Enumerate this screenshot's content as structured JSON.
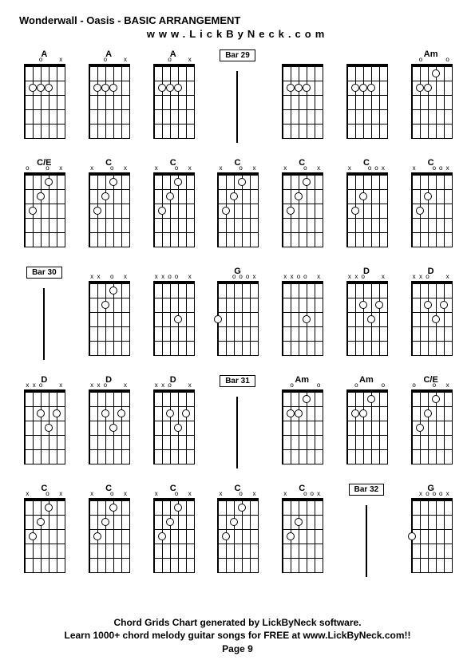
{
  "header": {
    "title": "Wonderwall - Oasis - BASIC ARRANGEMENT",
    "subtitle": "www.LickByNeck.com"
  },
  "grid": {
    "columns": 7,
    "rows": 5,
    "cells": [
      {
        "type": "chord",
        "label": "A",
        "markers": [
          "",
          "",
          "o",
          "",
          "",
          "x"
        ],
        "dots": [
          [
            2,
            2
          ],
          [
            3,
            2
          ],
          [
            4,
            2
          ]
        ]
      },
      {
        "type": "chord",
        "label": "A",
        "markers": [
          "",
          "",
          "o",
          "",
          "",
          "x"
        ],
        "dots": [
          [
            2,
            2
          ],
          [
            3,
            2
          ],
          [
            4,
            2
          ]
        ]
      },
      {
        "type": "chord",
        "label": "A",
        "markers": [
          "",
          "",
          "o",
          "",
          "",
          "x"
        ],
        "dots": [
          [
            2,
            2
          ],
          [
            3,
            2
          ],
          [
            4,
            2
          ]
        ]
      },
      {
        "type": "bar",
        "label": "Bar 29"
      },
      {
        "type": "chord",
        "label": "",
        "markers": [
          "",
          "",
          "",
          "",
          "",
          ""
        ],
        "dots": [
          [
            2,
            2
          ],
          [
            3,
            2
          ],
          [
            4,
            2
          ]
        ]
      },
      {
        "type": "chord",
        "label": "",
        "markers": [
          "",
          "",
          "",
          "",
          "",
          ""
        ],
        "dots": [
          [
            2,
            2
          ],
          [
            3,
            2
          ],
          [
            4,
            2
          ]
        ]
      },
      {
        "type": "chord",
        "label": "Am",
        "markers": [
          "",
          "o",
          "",
          "",
          "",
          "o"
        ],
        "dots": [
          [
            2,
            2
          ],
          [
            3,
            2
          ],
          [
            4,
            1
          ]
        ]
      },
      {
        "type": "chord",
        "label": "C/E",
        "markers": [
          "o",
          "",
          "",
          "o",
          "",
          "x"
        ],
        "dots": [
          [
            2,
            3
          ],
          [
            3,
            2
          ],
          [
            4,
            1
          ]
        ]
      },
      {
        "type": "chord",
        "label": "C",
        "markers": [
          "x",
          "",
          "",
          "o",
          "",
          "x"
        ],
        "dots": [
          [
            2,
            3
          ],
          [
            3,
            2
          ],
          [
            4,
            1
          ]
        ]
      },
      {
        "type": "chord",
        "label": "C",
        "markers": [
          "x",
          "",
          "",
          "o",
          "",
          "x"
        ],
        "dots": [
          [
            2,
            3
          ],
          [
            3,
            2
          ],
          [
            4,
            1
          ]
        ]
      },
      {
        "type": "chord",
        "label": "C",
        "markers": [
          "x",
          "",
          "",
          "o",
          "",
          "x"
        ],
        "dots": [
          [
            2,
            3
          ],
          [
            3,
            2
          ],
          [
            4,
            1
          ]
        ]
      },
      {
        "type": "chord",
        "label": "C",
        "markers": [
          "x",
          "",
          "",
          "o",
          "",
          "x"
        ],
        "dots": [
          [
            2,
            3
          ],
          [
            3,
            2
          ],
          [
            4,
            1
          ]
        ]
      },
      {
        "type": "chord",
        "label": "C",
        "markers": [
          "x",
          "",
          "",
          "o",
          "o",
          "x"
        ],
        "dots": [
          [
            2,
            3
          ],
          [
            3,
            2
          ]
        ]
      },
      {
        "type": "chord",
        "label": "C",
        "markers": [
          "x",
          "",
          "",
          "o",
          "o",
          "x"
        ],
        "dots": [
          [
            2,
            3
          ],
          [
            3,
            2
          ]
        ]
      },
      {
        "type": "bar",
        "label": "Bar 30"
      },
      {
        "type": "chord",
        "label": "",
        "markers": [
          "x",
          "x",
          "",
          "o",
          "",
          "x"
        ],
        "dots": [
          [
            3,
            2
          ],
          [
            4,
            1
          ]
        ]
      },
      {
        "type": "chord",
        "label": "",
        "markers": [
          "x",
          "x",
          "o",
          "o",
          "",
          "x"
        ],
        "dots": [
          [
            4,
            3
          ]
        ]
      },
      {
        "type": "chord",
        "label": "G",
        "markers": [
          "",
          "",
          "o",
          "o",
          "o",
          "x"
        ],
        "dots": [
          [
            1,
            3
          ]
        ]
      },
      {
        "type": "chord",
        "label": "",
        "markers": [
          "x",
          "x",
          "o",
          "o",
          "",
          "x"
        ],
        "dots": [
          [
            4,
            3
          ]
        ]
      },
      {
        "type": "chord",
        "label": "D",
        "markers": [
          "x",
          "x",
          "o",
          "",
          "",
          "x"
        ],
        "dots": [
          [
            3,
            2
          ],
          [
            4,
            3
          ],
          [
            5,
            2
          ]
        ]
      },
      {
        "type": "chord",
        "label": "D",
        "markers": [
          "x",
          "x",
          "o",
          "",
          "",
          "x"
        ],
        "dots": [
          [
            3,
            2
          ],
          [
            4,
            3
          ],
          [
            5,
            2
          ]
        ]
      },
      {
        "type": "chord",
        "label": "D",
        "markers": [
          "x",
          "x",
          "o",
          "",
          "",
          "x"
        ],
        "dots": [
          [
            3,
            2
          ],
          [
            4,
            3
          ],
          [
            5,
            2
          ]
        ]
      },
      {
        "type": "chord",
        "label": "D",
        "markers": [
          "x",
          "x",
          "o",
          "",
          "",
          "x"
        ],
        "dots": [
          [
            3,
            2
          ],
          [
            4,
            3
          ],
          [
            5,
            2
          ]
        ]
      },
      {
        "type": "chord",
        "label": "D",
        "markers": [
          "x",
          "x",
          "o",
          "",
          "",
          "x"
        ],
        "dots": [
          [
            3,
            2
          ],
          [
            4,
            3
          ],
          [
            5,
            2
          ]
        ]
      },
      {
        "type": "bar",
        "label": "Bar 31"
      },
      {
        "type": "chord",
        "label": "Am",
        "markers": [
          "",
          "o",
          "",
          "",
          "",
          "o"
        ],
        "dots": [
          [
            2,
            2
          ],
          [
            3,
            2
          ],
          [
            4,
            1
          ]
        ]
      },
      {
        "type": "chord",
        "label": "Am",
        "markers": [
          "",
          "o",
          "",
          "",
          "",
          "o"
        ],
        "dots": [
          [
            2,
            2
          ],
          [
            3,
            2
          ],
          [
            4,
            1
          ]
        ]
      },
      {
        "type": "chord",
        "label": "C/E",
        "markers": [
          "o",
          "",
          "",
          "o",
          "",
          "x"
        ],
        "dots": [
          [
            2,
            3
          ],
          [
            3,
            2
          ],
          [
            4,
            1
          ]
        ]
      },
      {
        "type": "chord",
        "label": "C",
        "markers": [
          "x",
          "",
          "",
          "o",
          "",
          "x"
        ],
        "dots": [
          [
            2,
            3
          ],
          [
            3,
            2
          ],
          [
            4,
            1
          ]
        ]
      },
      {
        "type": "chord",
        "label": "C",
        "markers": [
          "x",
          "",
          "",
          "o",
          "",
          "x"
        ],
        "dots": [
          [
            2,
            3
          ],
          [
            3,
            2
          ],
          [
            4,
            1
          ]
        ]
      },
      {
        "type": "chord",
        "label": "C",
        "markers": [
          "x",
          "",
          "",
          "o",
          "",
          "x"
        ],
        "dots": [
          [
            2,
            3
          ],
          [
            3,
            2
          ],
          [
            4,
            1
          ]
        ]
      },
      {
        "type": "chord",
        "label": "C",
        "markers": [
          "x",
          "",
          "",
          "o",
          "",
          "x"
        ],
        "dots": [
          [
            2,
            3
          ],
          [
            3,
            2
          ],
          [
            4,
            1
          ]
        ]
      },
      {
        "type": "chord",
        "label": "C",
        "markers": [
          "x",
          "",
          "",
          "o",
          "o",
          "x"
        ],
        "dots": [
          [
            2,
            3
          ],
          [
            3,
            2
          ]
        ]
      },
      {
        "type": "bar",
        "label": "Bar 32"
      },
      {
        "type": "chord",
        "label": "G",
        "markers": [
          "",
          "x",
          "o",
          "o",
          "o",
          "x"
        ],
        "dots": [
          [
            1,
            3
          ]
        ]
      }
    ]
  },
  "footer": {
    "line1": "Chord Grids Chart generated by LickByNeck software.",
    "line2": "Learn 1000+ chord melody guitar songs for FREE at www.LickByNeck.com!!",
    "page": "Page 9"
  },
  "colors": {
    "background": "#ffffff",
    "foreground": "#000000"
  }
}
